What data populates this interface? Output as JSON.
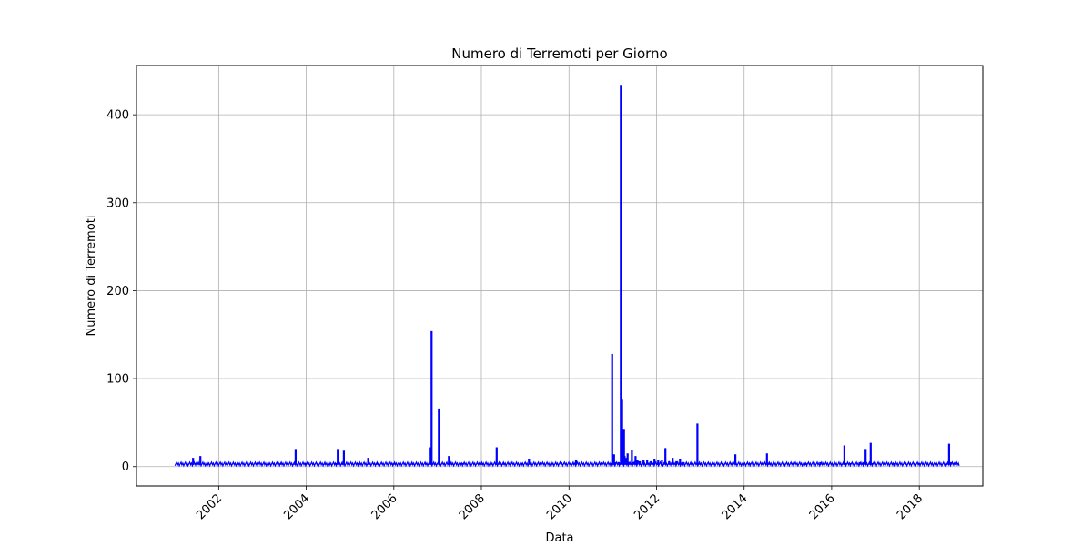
{
  "chart_data": {
    "type": "line",
    "title": "Numero di Terremoti per Giorno",
    "xlabel": "Data",
    "ylabel": "Numero di Terremoti",
    "x_axis": "date",
    "xlim": [
      "2000-02-15",
      "2019-06-15"
    ],
    "ylim": [
      -22,
      456
    ],
    "x_ticks": [
      "2002",
      "2004",
      "2006",
      "2008",
      "2010",
      "2012",
      "2014",
      "2016",
      "2018"
    ],
    "y_ticks": [
      0,
      100,
      200,
      300,
      400
    ],
    "grid": true,
    "legend": "none",
    "series": [
      {
        "color": "#0000ff",
        "x": [
          "2001-01-01",
          "2001-03-01",
          "2001-05-20",
          "2001-06-01",
          "2001-07-20",
          "2001-08-01",
          "2002-06-01",
          "2003-01-01",
          "2003-06-01",
          "2003-09-25",
          "2003-10-05",
          "2004-01-01",
          "2004-06-01",
          "2004-09-05",
          "2004-09-20",
          "2004-10-25",
          "2004-11-10",
          "2005-03-10",
          "2005-03-25",
          "2005-06-01",
          "2005-08-10",
          "2005-08-25",
          "2006-01-01",
          "2006-06-01",
          "2006-09-25",
          "2006-10-15",
          "2006-10-28",
          "2006-11-05",
          "2006-11-12",
          "2006-11-20",
          "2006-12-10",
          "2007-01-12",
          "2007-01-20",
          "2007-04-05",
          "2007-04-25",
          "2007-08-01",
          "2008-01-01",
          "2008-05-01",
          "2008-05-08",
          "2008-05-20",
          "2008-07-01",
          "2008-12-01",
          "2009-02-01",
          "2009-08-01",
          "2010-02-10",
          "2010-03-01",
          "2010-09-01",
          "2010-12-20",
          "2010-12-27",
          "2011-01-05",
          "2011-01-12",
          "2011-01-22",
          "2011-02-20",
          "2011-03-08",
          "2011-03-10",
          "2011-03-12",
          "2011-03-20",
          "2011-03-28",
          "2011-04-05",
          "2011-04-10",
          "2011-04-15",
          "2011-04-25",
          "2011-05-05",
          "2011-05-20",
          "2011-06-10",
          "2011-06-25",
          "2011-07-10",
          "2011-07-25",
          "2011-08-15",
          "2011-09-15",
          "2011-10-15",
          "2011-11-15",
          "2011-12-15",
          "2012-01-15",
          "2012-02-15",
          "2012-03-08",
          "2012-03-15",
          "2012-04-15",
          "2012-05-15",
          "2012-06-15",
          "2012-07-15",
          "2012-08-15",
          "2012-10-15",
          "2012-12-05",
          "2012-12-07",
          "2012-12-20",
          "2013-04-15",
          "2013-09-20",
          "2013-10-20",
          "2013-10-30",
          "2014-02-15",
          "2014-07-05",
          "2014-07-10",
          "2014-07-25",
          "2014-12-01",
          "2015-06-01",
          "2015-10-01",
          "2016-04-10",
          "2016-04-16",
          "2016-04-25",
          "2016-06-01",
          "2016-08-25",
          "2016-09-25",
          "2016-10-10",
          "2016-11-15",
          "2016-11-22",
          "2016-12-05",
          "2017-06-01",
          "2018-01-01",
          "2018-08-25",
          "2018-09-06",
          "2018-09-20",
          "2018-11-01",
          "2018-11-30"
        ],
        "values": [
          2,
          3,
          2,
          10,
          3,
          12,
          3,
          3,
          4,
          3,
          20,
          4,
          3,
          4,
          20,
          4,
          18,
          4,
          3,
          10,
          4,
          3,
          4,
          3,
          4,
          3,
          22,
          4,
          154,
          3,
          4,
          66,
          3,
          12,
          3,
          4,
          3,
          3,
          22,
          3,
          4,
          4,
          9,
          3,
          3,
          7,
          3,
          4,
          128,
          4,
          14,
          5,
          5,
          4,
          434,
          8,
          76,
          5,
          43,
          12,
          4,
          10,
          15,
          5,
          19,
          5,
          12,
          8,
          6,
          8,
          7,
          6,
          9,
          8,
          7,
          5,
          21,
          6,
          10,
          6,
          9,
          5,
          4,
          3,
          49,
          4,
          4,
          3,
          14,
          3,
          4,
          3,
          15,
          4,
          3,
          4,
          5,
          4,
          24,
          4,
          4,
          5,
          5,
          20,
          4,
          27,
          4,
          4,
          4,
          4,
          26,
          5,
          4,
          2
        ]
      }
    ]
  }
}
